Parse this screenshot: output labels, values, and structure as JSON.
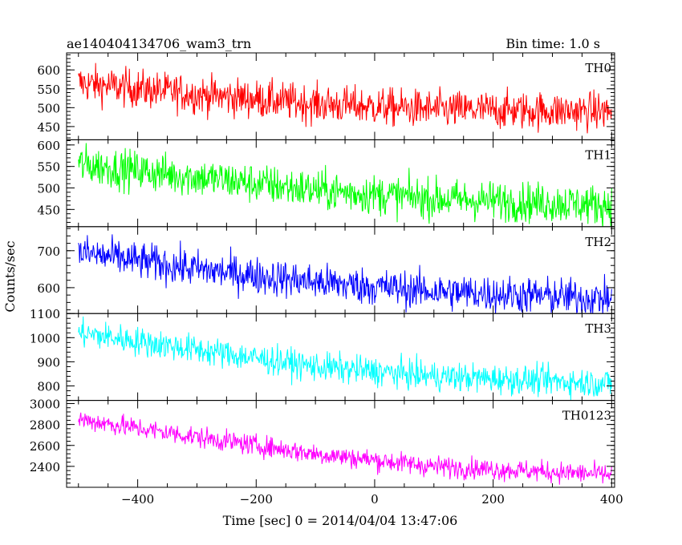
{
  "chart_data": {
    "type": "line",
    "title": "ae140404134706_wam3_trn",
    "subtitle": "Bin time: 1.0 s",
    "xlabel": "Time [sec] 0 = 2014/04/04 13:47:06",
    "ylabel": "Counts/sec",
    "xlim": [
      -520,
      405
    ],
    "xticks": [
      -400,
      -200,
      0,
      200,
      400
    ],
    "x_start": -500,
    "x_end": 400,
    "bin_time": 1.0,
    "panels": [
      {
        "name": "TH0",
        "color": "#ff0000",
        "ylim": [
          415,
          645
        ],
        "yticks": [
          450,
          500,
          550,
          600
        ],
        "trend": [
          [
            -500,
            565
          ],
          [
            -300,
            535
          ],
          [
            -100,
            510
          ],
          [
            100,
            495
          ],
          [
            400,
            490
          ]
        ],
        "noise": 25
      },
      {
        "name": "TH1",
        "color": "#00ff00",
        "ylim": [
          410,
          612
        ],
        "yticks": [
          450,
          500,
          550,
          600
        ],
        "trend": [
          [
            -500,
            555
          ],
          [
            -300,
            525
          ],
          [
            -100,
            495
          ],
          [
            100,
            475
          ],
          [
            400,
            460
          ]
        ],
        "noise": 23
      },
      {
        "name": "TH2",
        "color": "#0000ff",
        "ylim": [
          530,
          765
        ],
        "yticks": [
          600,
          700
        ],
        "trend": [
          [
            -500,
            695
          ],
          [
            -300,
            650
          ],
          [
            -100,
            615
          ],
          [
            100,
            590
          ],
          [
            400,
            570
          ]
        ],
        "noise": 25
      },
      {
        "name": "TH3",
        "color": "#00ffff",
        "ylim": [
          740,
          1100
        ],
        "yticks": [
          800,
          900,
          1000,
          1100
        ],
        "trend": [
          [
            -500,
            1020
          ],
          [
            -300,
            950
          ],
          [
            -100,
            880
          ],
          [
            100,
            840
          ],
          [
            400,
            810
          ]
        ],
        "noise": 30
      },
      {
        "name": "TH0123",
        "color": "#ff00ff",
        "ylim": [
          2200,
          3030
        ],
        "yticks": [
          2400,
          2600,
          2800,
          3000
        ],
        "trend": [
          [
            -500,
            2850
          ],
          [
            -300,
            2680
          ],
          [
            -100,
            2520
          ],
          [
            100,
            2400
          ],
          [
            400,
            2320
          ]
        ],
        "noise": 50
      }
    ]
  }
}
